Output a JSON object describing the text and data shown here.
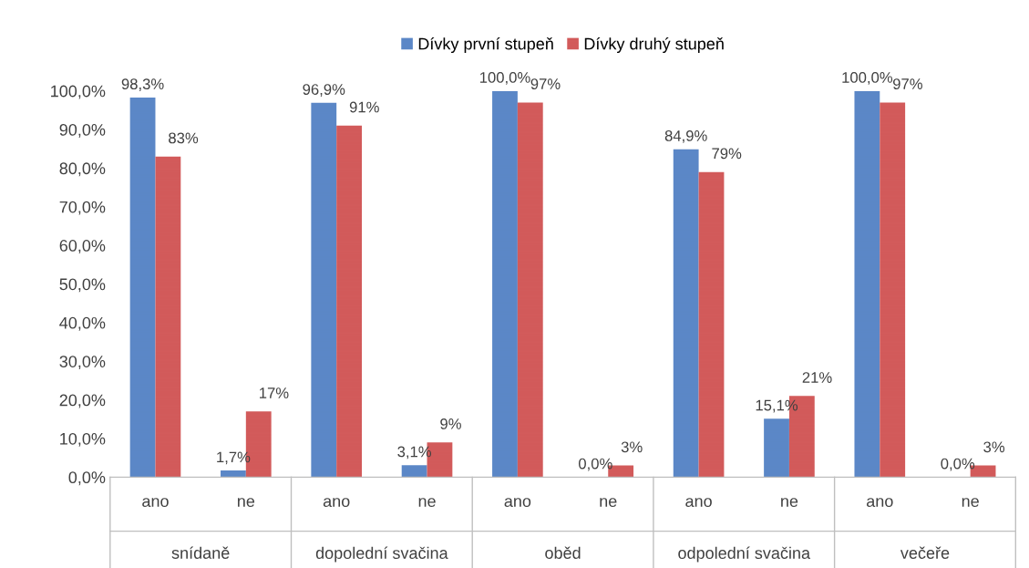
{
  "chart_data": {
    "type": "bar",
    "categories": [
      "ano",
      "ne",
      "ano",
      "ne",
      "ano",
      "ne",
      "ano",
      "ne",
      "ano",
      "ne"
    ],
    "annotations": [
      "snídaně",
      "dopolední svačina",
      "oběd",
      "odpolední svačina",
      "večeře"
    ],
    "series": [
      {
        "name": "Dívky první stupeň",
        "color": "#5b87c7",
        "values": [
          98.3,
          1.7,
          96.9,
          3.1,
          100,
          0,
          84.9,
          15.1,
          100,
          0
        ],
        "value_labels": [
          "98,3%",
          "1,7%",
          "96,9%",
          "3,1%",
          "100,0%",
          "0,0%",
          "84,9%",
          "15,1%",
          "100,0%",
          "0,0%"
        ]
      },
      {
        "name": "Dívky druhý stupeň",
        "color": "#d25a5a",
        "values": [
          83,
          17,
          91,
          9,
          97,
          3,
          79,
          21,
          97,
          3
        ],
        "value_labels": [
          "83%",
          "17%",
          "91%",
          "9%",
          "97%",
          "3%",
          "79%",
          "21%",
          "97%",
          "3%"
        ]
      }
    ],
    "ylim": [
      0,
      100
    ],
    "yticks": [
      {
        "value": 0,
        "label": "0,0%"
      },
      {
        "value": 10,
        "label": "10,0%"
      },
      {
        "value": 20,
        "label": "20,0%"
      },
      {
        "value": 30,
        "label": "30,0%"
      },
      {
        "value": 40,
        "label": "40,0%"
      },
      {
        "value": 50,
        "label": "50,0%"
      },
      {
        "value": 60,
        "label": "60,0%"
      },
      {
        "value": 70,
        "label": "70,0%"
      },
      {
        "value": 80,
        "label": "80,0%"
      },
      {
        "value": 90,
        "label": "90,0%"
      },
      {
        "value": 100,
        "label": "100,0%"
      }
    ],
    "grid": false,
    "legend": "top"
  }
}
